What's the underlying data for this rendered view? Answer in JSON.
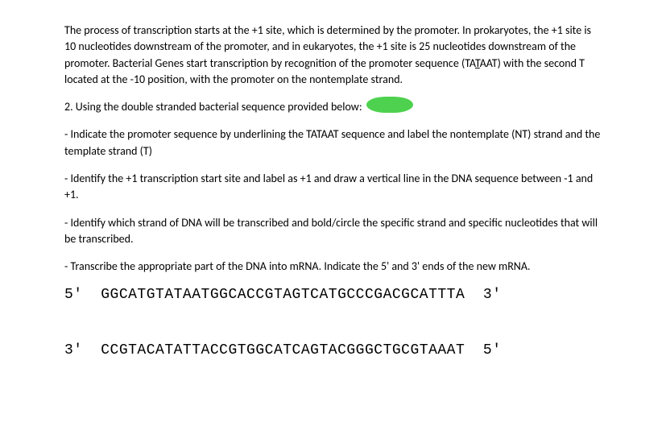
{
  "intro": {
    "p1_part1": "The process of transcription starts at the +1 site, which is determined by the promoter. In prokaryotes, the +1 site is 10 nucleotides downstream of the promoter, and in eukaryotes, the +1 site is 25 nucleotides downstream of the promoter. Bacterial Genes start transcription by recognition of the promoter sequence (TA",
    "p1_underlineT": "T",
    "p1_part2": "AAT) with the second T located at the -10 position, with the promoter on the nontemplate strand."
  },
  "q2": {
    "lead": "2. Using the double stranded bacterial sequence provided below:",
    "bullet1": "- Indicate the promoter sequence by underlining the TATAAT sequence and label the nontemplate (NT) strand and the template strand (T)",
    "bullet2": "- Identify the +1 transcription start site and label as +1 and draw a vertical line in the DNA sequence between -1 and +1.",
    "bullet3": "- Identify which strand of DNA will be transcribed and bold/circle the specific strand and specific nucleotides that will be transcribed.",
    "bullet4": "- Transcribe the appropriate part of the DNA into mRNA. Indicate the 5' and 3' ends of the new mRNA."
  },
  "sequence": {
    "top_left": "5'",
    "top_seq": "GGCATGTATAATGGCACCGTAGTCATGCCCGACGCATTTA",
    "top_right": "3'",
    "bottom_left": "3'",
    "bottom_seq": "CCGTACATATTACCGTGGCATCAGTACGGGCTGCGTAAAT",
    "bottom_right": "5'"
  },
  "style": {
    "font_body_size": 14,
    "font_seq_size": 18,
    "text_color": "#000000",
    "background_color": "#ffffff",
    "highlight_color": "#3bcc3b"
  }
}
